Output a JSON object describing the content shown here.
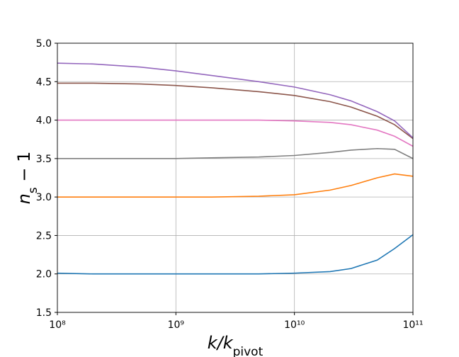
{
  "chart_data": {
    "type": "line",
    "xlabel": {
      "main": "k/k",
      "sub": "pivot"
    },
    "ylabel": {
      "main": "n",
      "sub": "s",
      "rest": " − 1"
    },
    "xscale": "log",
    "grid": true,
    "x": [
      100000000,
      200000000,
      500000000,
      1000000000,
      2000000000,
      5000000000,
      10000000000,
      20000000000,
      30000000000,
      50000000000,
      70000000000,
      100000000000
    ],
    "series": [
      {
        "color": "#1f77b4",
        "values": [
          2.01,
          2.0,
          2.0,
          2.0,
          2.0,
          2.0,
          2.01,
          2.03,
          2.07,
          2.18,
          2.33,
          2.51
        ]
      },
      {
        "color": "#ff7f0e",
        "values": [
          3.0,
          3.0,
          3.0,
          3.0,
          3.0,
          3.01,
          3.03,
          3.09,
          3.15,
          3.25,
          3.3,
          3.27
        ]
      },
      {
        "color": "#7f7f7f",
        "values": [
          3.5,
          3.5,
          3.5,
          3.5,
          3.51,
          3.52,
          3.54,
          3.58,
          3.61,
          3.63,
          3.62,
          3.5
        ]
      },
      {
        "color": "#e377c2",
        "values": [
          4.0,
          4.0,
          4.0,
          4.0,
          4.0,
          4.0,
          3.99,
          3.97,
          3.94,
          3.87,
          3.79,
          3.66
        ]
      },
      {
        "color": "#8c564b",
        "values": [
          4.48,
          4.48,
          4.47,
          4.45,
          4.42,
          4.37,
          4.32,
          4.24,
          4.17,
          4.05,
          3.94,
          3.76
        ]
      },
      {
        "color": "#9467bd",
        "values": [
          4.74,
          4.73,
          4.69,
          4.64,
          4.58,
          4.5,
          4.43,
          4.33,
          4.25,
          4.11,
          3.99,
          3.77
        ]
      }
    ],
    "xlim": [
      100000000,
      100000000000
    ],
    "xticks": [
      {
        "value": 100000000,
        "label": "10⁸"
      },
      {
        "value": 1000000000,
        "label": "10⁹"
      },
      {
        "value": 10000000000,
        "label": "10¹⁰"
      },
      {
        "value": 100000000000,
        "label": "10¹¹"
      }
    ],
    "ylim": [
      1.5,
      5.0
    ],
    "yticks": [
      1.5,
      {
        "value": 2,
        "label": "2.0"
      },
      2.5,
      {
        "value": 3,
        "label": "3.0"
      },
      3.5,
      {
        "value": 4,
        "label": "4.0"
      },
      4.5,
      {
        "value": 5,
        "label": "5.0"
      }
    ]
  }
}
